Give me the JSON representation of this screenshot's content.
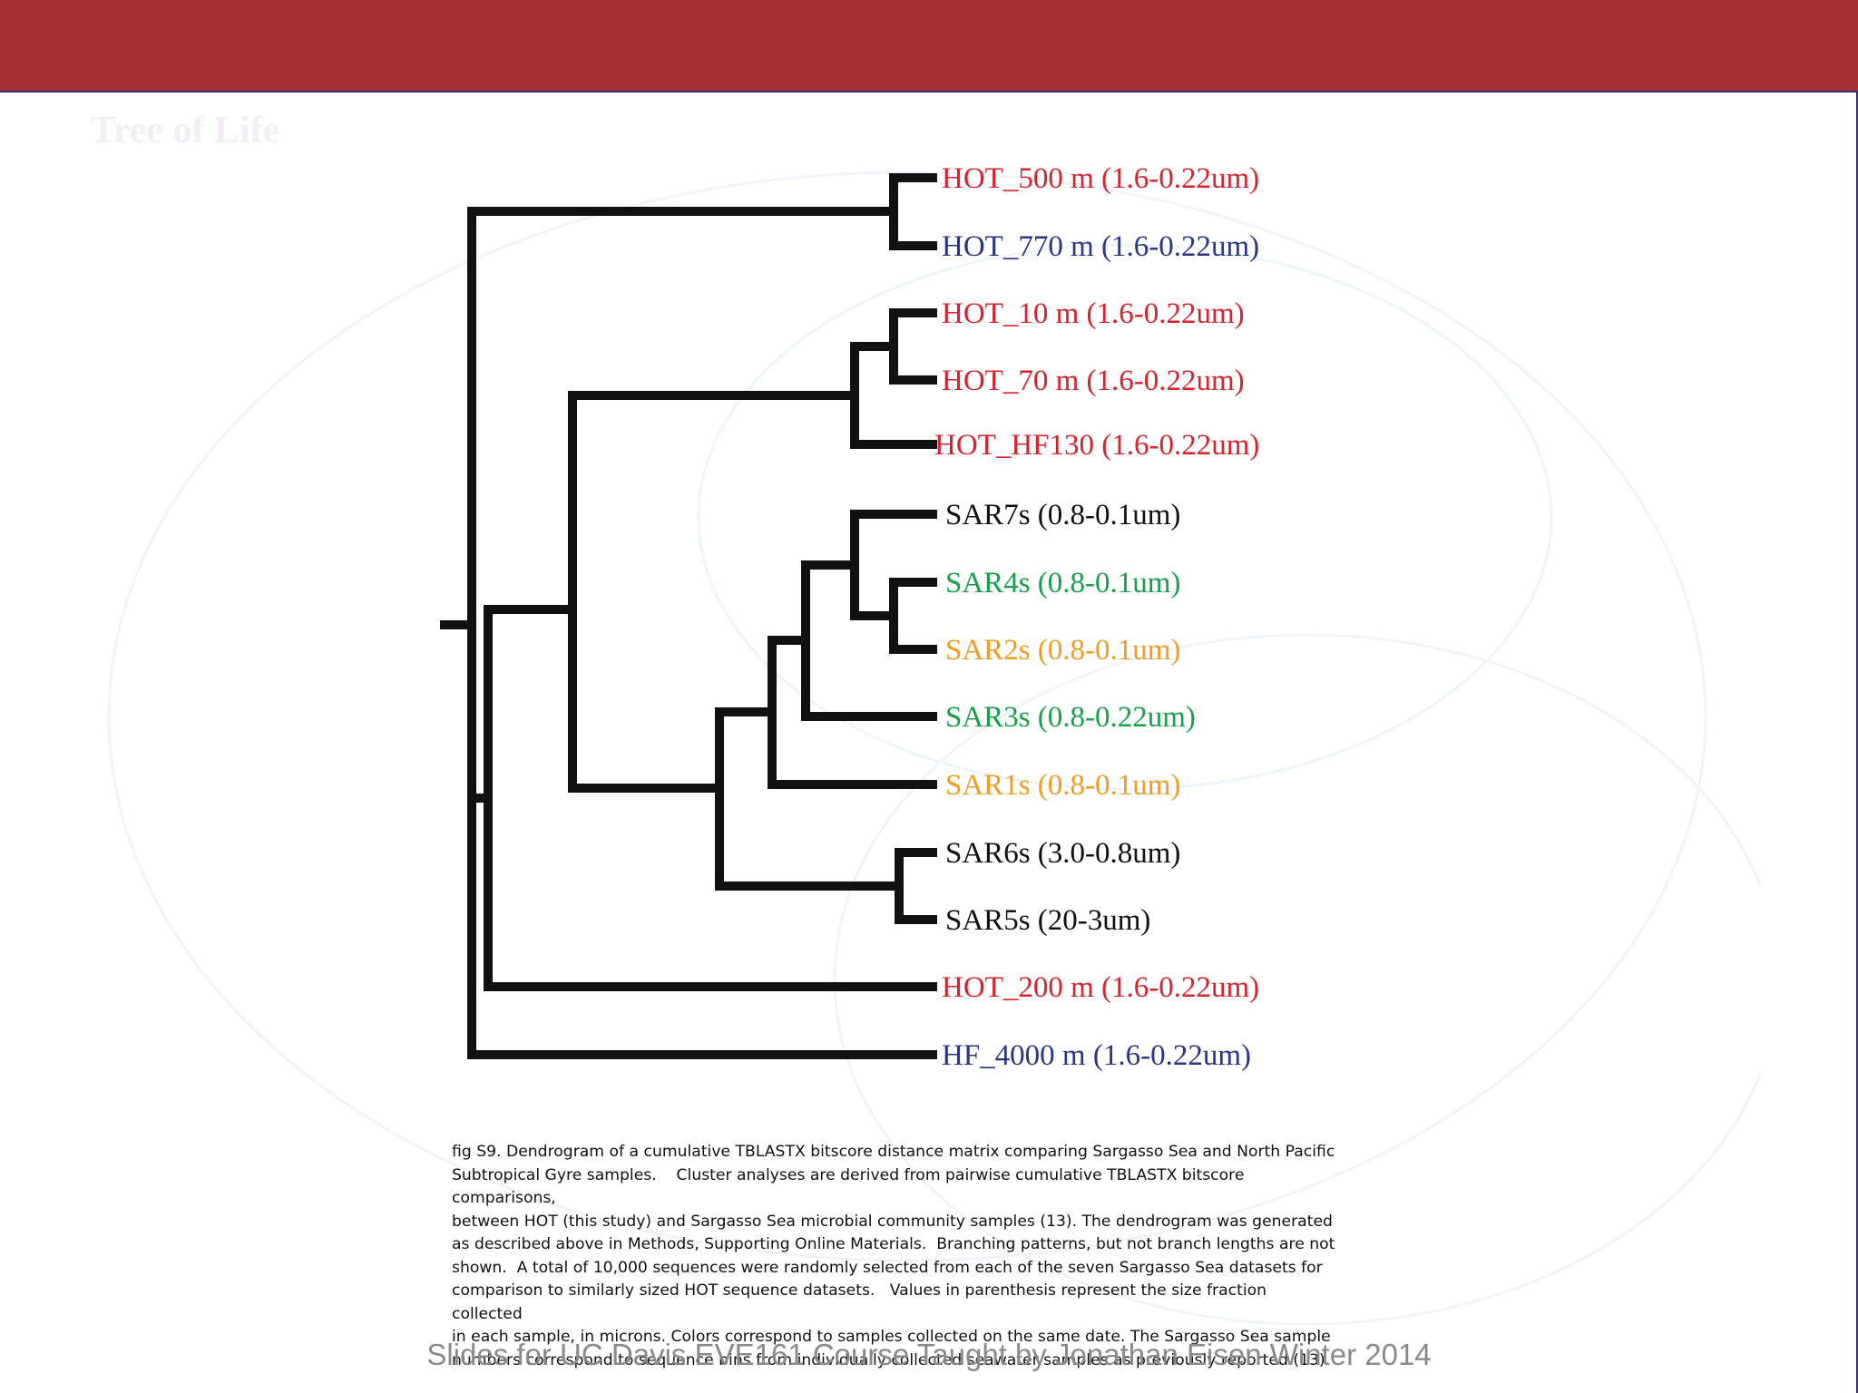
{
  "slide": {
    "background_title": "Tree of Life",
    "header_color": "#a22f36",
    "footer_text": "Slides for UC Davis EVE161 Course Taught by Jonathan Eisen Winter 2014"
  },
  "dendrogram": {
    "colors": {
      "red": "#d8222e",
      "navy": "#2b3486",
      "black": "#111111",
      "green": "#16a04a",
      "orange": "#f39c22"
    },
    "leaves": [
      {
        "label": "HOT_500 m (1.6-0.22um)",
        "color": "red"
      },
      {
        "label": "HOT_770 m (1.6-0.22um)",
        "color": "navy"
      },
      {
        "label": "HOT_10 m (1.6-0.22um)",
        "color": "red"
      },
      {
        "label": "HOT_70 m (1.6-0.22um)",
        "color": "red"
      },
      {
        "label": "HOT_HF130 (1.6-0.22um)",
        "color": "red"
      },
      {
        "label": "SAR7s (0.8-0.1um)",
        "color": "black"
      },
      {
        "label": "SAR4s (0.8-0.1um)",
        "color": "green"
      },
      {
        "label": "SAR2s (0.8-0.1um)",
        "color": "orange"
      },
      {
        "label": "SAR3s (0.8-0.22um)",
        "color": "green"
      },
      {
        "label": "SAR1s (0.8-0.1um)",
        "color": "orange"
      },
      {
        "label": "SAR6s (3.0-0.8um)",
        "color": "black"
      },
      {
        "label": "SAR5s (20-3um)",
        "color": "black"
      },
      {
        "label": "HOT_200 m (1.6-0.22um)",
        "color": "red"
      },
      {
        "label": "HF_4000 m (1.6-0.22um)",
        "color": "navy"
      }
    ]
  },
  "caption": {
    "lines": [
      "fig S9. Dendrogram of a cumulative TBLASTX bitscore distance matrix comparing Sargasso Sea and North Pacific",
      "Subtropical Gyre samples.    Cluster analyses are derived from pairwise cumulative TBLASTX bitscore comparisons,",
      "between HOT (this study) and Sargasso Sea microbial community samples (13). The dendrogram was generated",
      "as described above in Methods, Supporting Online Materials.  Branching patterns, but not branch lengths are not",
      "shown.  A total of 10,000 sequences were randomly selected from each of the seven Sargasso Sea datasets for",
      "comparison to similarly sized HOT sequence datasets.   Values in parenthesis represent the size fraction collected",
      "in each sample, in microns. Colors correspond to samples collected on the same date. The Sargasso Sea sample",
      "numbers correspond to sequence bins from individually collected seawater samples as previously reported (13)."
    ]
  }
}
